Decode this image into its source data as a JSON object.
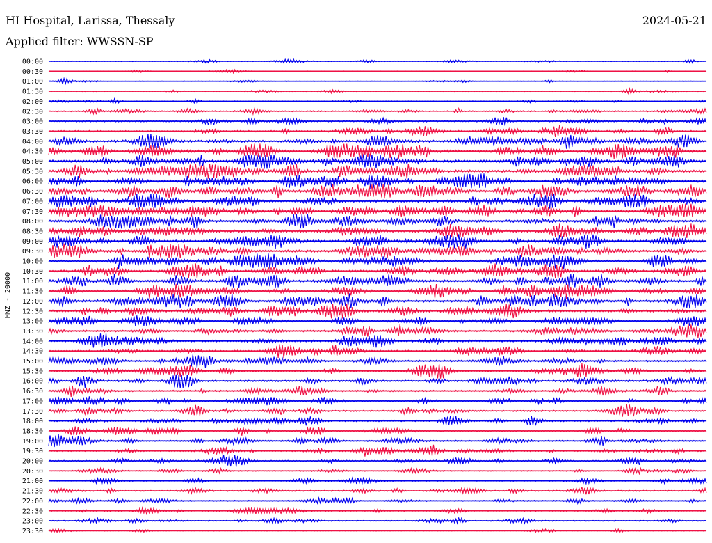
{
  "header": {
    "station": "HI Hospital, Larissa, Thessaly",
    "date": "2024-05-21",
    "filter": "Applied filter: WWSSN-SP"
  },
  "chart_data": {
    "type": "line",
    "title": "HI Hospital, Larissa, Thessaly",
    "subtitle": "Applied filter: WWSSN-SP",
    "ylabel": "HNZ - 20000",
    "xlabel": "",
    "grid": false,
    "colors": [
      "#0000ee",
      "#ee1144"
    ],
    "rows": [
      {
        "label": "00:00",
        "activity": 0.1
      },
      {
        "label": "00:30",
        "activity": 0.05
      },
      {
        "label": "01:00",
        "activity": 0.1
      },
      {
        "label": "01:30",
        "activity": 0.12
      },
      {
        "label": "02:00",
        "activity": 0.18
      },
      {
        "label": "02:30",
        "activity": 0.3
      },
      {
        "label": "03:00",
        "activity": 0.4
      },
      {
        "label": "03:30",
        "activity": 0.5
      },
      {
        "label": "04:00",
        "activity": 0.7
      },
      {
        "label": "04:30",
        "activity": 0.9
      },
      {
        "label": "05:00",
        "activity": 0.9
      },
      {
        "label": "05:30",
        "activity": 0.9
      },
      {
        "label": "06:00",
        "activity": 0.85
      },
      {
        "label": "06:30",
        "activity": 0.85
      },
      {
        "label": "07:00",
        "activity": 0.85
      },
      {
        "label": "07:30",
        "activity": 0.85
      },
      {
        "label": "08:00",
        "activity": 0.85
      },
      {
        "label": "08:30",
        "activity": 0.85
      },
      {
        "label": "09:00",
        "activity": 0.8
      },
      {
        "label": "09:30",
        "activity": 0.8
      },
      {
        "label": "10:00",
        "activity": 0.75
      },
      {
        "label": "10:30",
        "activity": 0.75
      },
      {
        "label": "11:00",
        "activity": 0.75
      },
      {
        "label": "11:30",
        "activity": 0.8
      },
      {
        "label": "12:00",
        "activity": 0.8
      },
      {
        "label": "12:30",
        "activity": 0.75
      },
      {
        "label": "13:00",
        "activity": 0.65
      },
      {
        "label": "13:30",
        "activity": 0.6
      },
      {
        "label": "14:00",
        "activity": 0.65
      },
      {
        "label": "14:30",
        "activity": 0.55
      },
      {
        "label": "15:00",
        "activity": 0.55
      },
      {
        "label": "15:30",
        "activity": 0.55
      },
      {
        "label": "16:00",
        "activity": 0.55
      },
      {
        "label": "16:30",
        "activity": 0.5
      },
      {
        "label": "17:00",
        "activity": 0.5
      },
      {
        "label": "17:30",
        "activity": 0.45
      },
      {
        "label": "18:00",
        "activity": 0.5
      },
      {
        "label": "18:30",
        "activity": 0.45
      },
      {
        "label": "19:00",
        "activity": 0.45
      },
      {
        "label": "19:30",
        "activity": 0.45
      },
      {
        "label": "20:00",
        "activity": 0.35
      },
      {
        "label": "20:30",
        "activity": 0.25
      },
      {
        "label": "21:00",
        "activity": 0.25
      },
      {
        "label": "21:30",
        "activity": 0.3
      },
      {
        "label": "22:00",
        "activity": 0.3
      },
      {
        "label": "22:30",
        "activity": 0.3
      },
      {
        "label": "23:00",
        "activity": 0.25
      },
      {
        "label": "23:30",
        "activity": 0.1
      }
    ]
  }
}
